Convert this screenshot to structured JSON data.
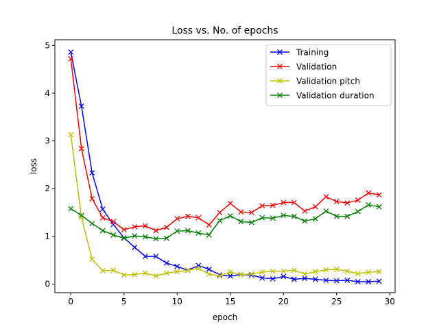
{
  "chart_data": {
    "type": "line",
    "title": "Loss vs. No. of epochs",
    "xlabel": "epoch",
    "ylabel": "loss",
    "xlim": [
      -1.5,
      30.5
    ],
    "ylim": [
      -0.18,
      5.12
    ],
    "xticks": [
      0,
      5,
      10,
      15,
      20,
      25,
      30
    ],
    "yticks": [
      0,
      1,
      2,
      3,
      4,
      5
    ],
    "legend_position": "top-right",
    "grid": false,
    "x": [
      0,
      1,
      2,
      3,
      4,
      5,
      6,
      7,
      8,
      9,
      10,
      11,
      12,
      13,
      14,
      15,
      16,
      17,
      18,
      19,
      20,
      21,
      22,
      23,
      24,
      25,
      26,
      27,
      28,
      29
    ],
    "series": [
      {
        "name": "Training",
        "color": "#0000ff",
        "marker": "x",
        "values": [
          4.86,
          3.73,
          2.33,
          1.57,
          1.25,
          0.97,
          0.77,
          0.58,
          0.58,
          0.44,
          0.37,
          0.29,
          0.39,
          0.31,
          0.19,
          0.17,
          0.2,
          0.19,
          0.13,
          0.11,
          0.16,
          0.1,
          0.12,
          0.1,
          0.08,
          0.07,
          0.08,
          0.05,
          0.05,
          0.06
        ]
      },
      {
        "name": "Validation",
        "color": "#ff0000",
        "marker": "x",
        "values": [
          4.72,
          2.84,
          1.79,
          1.39,
          1.31,
          1.14,
          1.2,
          1.22,
          1.12,
          1.19,
          1.37,
          1.42,
          1.39,
          1.24,
          1.5,
          1.69,
          1.51,
          1.5,
          1.64,
          1.65,
          1.71,
          1.71,
          1.53,
          1.62,
          1.83,
          1.73,
          1.7,
          1.76,
          1.91,
          1.87
        ]
      },
      {
        "name": "Validation pitch",
        "color": "#bfbf00",
        "marker": "x",
        "values": [
          3.13,
          1.4,
          0.52,
          0.28,
          0.29,
          0.19,
          0.2,
          0.23,
          0.17,
          0.23,
          0.26,
          0.29,
          0.33,
          0.21,
          0.17,
          0.25,
          0.2,
          0.21,
          0.25,
          0.27,
          0.27,
          0.29,
          0.21,
          0.26,
          0.3,
          0.31,
          0.27,
          0.22,
          0.25,
          0.26
        ]
      },
      {
        "name": "Validation duration",
        "color": "#008000",
        "marker": "x",
        "values": [
          1.58,
          1.44,
          1.27,
          1.12,
          1.03,
          0.96,
          1.01,
          0.99,
          0.95,
          0.96,
          1.11,
          1.12,
          1.07,
          1.03,
          1.33,
          1.43,
          1.31,
          1.29,
          1.39,
          1.38,
          1.44,
          1.42,
          1.32,
          1.37,
          1.53,
          1.42,
          1.42,
          1.52,
          1.66,
          1.62
        ]
      }
    ]
  }
}
